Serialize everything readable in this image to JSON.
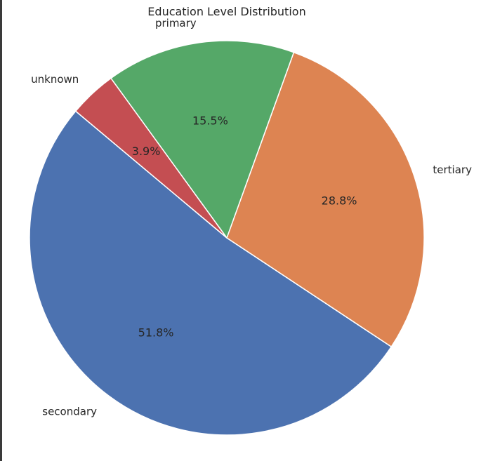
{
  "chart_data": {
    "type": "pie",
    "title": "Education Level Distribution",
    "categories": [
      "secondary",
      "tertiary",
      "primary",
      "unknown"
    ],
    "values": [
      51.8,
      28.8,
      15.5,
      3.9
    ],
    "labels": [
      "51.8%",
      "28.8%",
      "15.5%",
      "3.9%"
    ],
    "colors": [
      "#4c72b0",
      "#dd8452",
      "#55a868",
      "#c44e52"
    ],
    "start_angle_deg": 140,
    "legend": "none"
  }
}
